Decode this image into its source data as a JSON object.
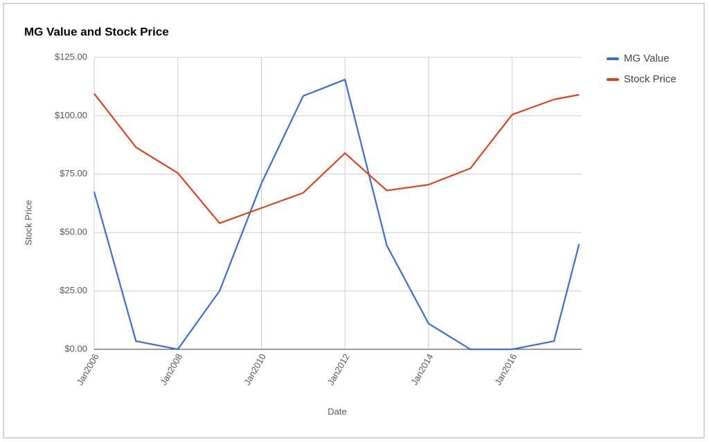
{
  "chart_data": {
    "type": "line",
    "title": "MG Value and Stock Price",
    "x_label": "Date",
    "y_label": "Stock Price",
    "x": [
      2006,
      2007,
      2008,
      2009,
      2010,
      2011,
      2012,
      2013,
      2014,
      2015,
      2016,
      2017,
      2017.6
    ],
    "xlim": [
      2006,
      2017.66
    ],
    "xticks": [
      {
        "value": 2006,
        "label": "Jan2006"
      },
      {
        "value": 2008,
        "label": "Jan2008"
      },
      {
        "value": 2010,
        "label": "Jan2010"
      },
      {
        "value": 2012,
        "label": "Jan2012"
      },
      {
        "value": 2014,
        "label": "Jan2014"
      },
      {
        "value": 2016,
        "label": "Jan2016"
      }
    ],
    "ylim": [
      0,
      125
    ],
    "yticks": [
      {
        "value": 0,
        "label": "$0.00"
      },
      {
        "value": 25,
        "label": "$25.00"
      },
      {
        "value": 50,
        "label": "$50.00"
      },
      {
        "value": 75,
        "label": "$75.00"
      },
      {
        "value": 100,
        "label": "$100.00"
      },
      {
        "value": 125,
        "label": "$125.00"
      }
    ],
    "grid": true,
    "legend": "right",
    "series": [
      {
        "name": "MG Value",
        "color": "#3c6ccf",
        "values": [
          67.5,
          3.5,
          0,
          25,
          71,
          108.5,
          115.5,
          44.5,
          11,
          0,
          0,
          3.5,
          45
        ]
      },
      {
        "name": "Stock Price",
        "color": "#d9431e",
        "values": [
          109.5,
          86.5,
          75.5,
          54,
          60.5,
          67,
          84,
          68,
          70.5,
          77.5,
          100.5,
          107,
          109
        ]
      }
    ]
  }
}
